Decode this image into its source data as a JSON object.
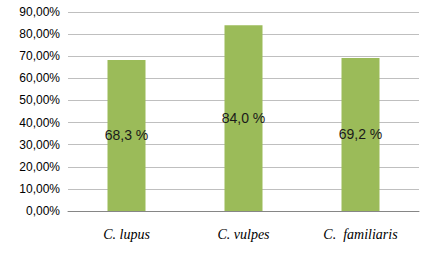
{
  "chart_data": {
    "type": "bar",
    "categories": [
      "C. lupus",
      "C. vulpes",
      "C.  familiaris"
    ],
    "values": [
      68.3,
      84.0,
      69.2
    ],
    "value_labels": [
      "68,3 %",
      "84,0 %",
      "69,2 %"
    ],
    "color": "#9bbb59",
    "ylim": [
      0,
      90
    ],
    "yticks": [
      {
        "value": 0,
        "label": "0,00%"
      },
      {
        "value": 10,
        "label": "10,00%"
      },
      {
        "value": 20,
        "label": "20,00%"
      },
      {
        "value": 30,
        "label": "30,00%"
      },
      {
        "value": 40,
        "label": "40,00%"
      },
      {
        "value": 50,
        "label": "50,00%"
      },
      {
        "value": 60,
        "label": "60,00%"
      },
      {
        "value": 70,
        "label": "70,00%"
      },
      {
        "value": 80,
        "label": "80,00%"
      },
      {
        "value": 90,
        "label": "90,00%"
      }
    ],
    "grid": true,
    "data_labels": true
  }
}
